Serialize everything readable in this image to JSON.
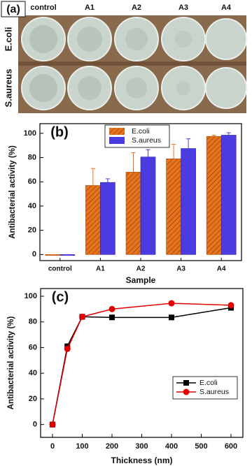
{
  "panel_a": {
    "label": "(a)",
    "columns": [
      "control",
      "A1",
      "A2",
      "A3",
      "A4"
    ],
    "rows": [
      "E.coli",
      "S.aureus"
    ]
  },
  "chart_data": [
    {
      "type": "bar",
      "label": "(b)",
      "x_label": "Sample",
      "y_label": "Antibacterial activity (%)",
      "categories": [
        "control",
        "A1",
        "A2",
        "A3",
        "A4"
      ],
      "series": [
        {
          "name": "E.coli",
          "color": "#e8731e",
          "hatch": true,
          "values": [
            0,
            57,
            68,
            79,
            97.5
          ],
          "errors": [
            0,
            14,
            16,
            12,
            1
          ]
        },
        {
          "name": "S.aureus",
          "color": "#4a3ce0",
          "values": [
            0,
            59.5,
            80.5,
            87.5,
            98.5
          ],
          "errors": [
            0,
            3,
            6,
            8,
            2
          ]
        }
      ],
      "ylim": [
        -5,
        108
      ],
      "yticks": [
        0,
        20,
        40,
        60,
        80,
        100
      ],
      "legend": "upper center"
    },
    {
      "type": "line",
      "label": "(c)",
      "x_label": "Thickness (nm)",
      "y_label": "Antibacterial activity (%)",
      "x": [
        0,
        50,
        100,
        200,
        400,
        600
      ],
      "series": [
        {
          "name": "E.coli",
          "color": "#000000",
          "marker": "square",
          "values": [
            0,
            61,
            84,
            83.5,
            83.5,
            91
          ]
        },
        {
          "name": "S.aureus",
          "color": "#e00000",
          "marker": "circle",
          "values": [
            0,
            59,
            84,
            90,
            94.5,
            93
          ]
        }
      ],
      "xlim": [
        -40,
        640
      ],
      "xticks": [
        0,
        100,
        200,
        300,
        400,
        500,
        600
      ],
      "ylim": [
        -10,
        106
      ],
      "yticks": [
        0,
        20,
        40,
        60,
        80,
        100
      ],
      "legend": "lower right"
    }
  ]
}
